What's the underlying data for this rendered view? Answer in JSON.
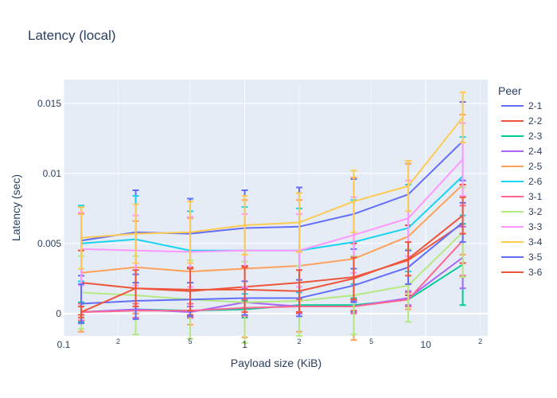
{
  "chart_data": {
    "type": "line",
    "title": "Latency (local)",
    "xlabel": "Payload size (KiB)",
    "ylabel": "Latency (sec)",
    "x_scale": "log",
    "xlim": [
      0.1,
      22
    ],
    "ylim": [
      -0.0016,
      0.0167
    ],
    "x_ticks": [
      {
        "v": 0.1,
        "label": "0.1"
      },
      {
        "v": 1,
        "label": "1"
      },
      {
        "v": 10,
        "label": "10"
      }
    ],
    "x_minor_ticks": [
      {
        "v": 0.2,
        "label": "2"
      },
      {
        "v": 0.5,
        "label": "5"
      },
      {
        "v": 2,
        "label": "2"
      },
      {
        "v": 5,
        "label": "5"
      },
      {
        "v": 20,
        "label": "2"
      }
    ],
    "y_ticks": [
      {
        "v": 0,
        "label": "0"
      },
      {
        "v": 0.005,
        "label": "0.005"
      },
      {
        "v": 0.01,
        "label": "0.01"
      },
      {
        "v": 0.015,
        "label": "0.015"
      }
    ],
    "grid": true,
    "legend_title": "Peer",
    "legend_position": "right",
    "x": [
      0.125,
      0.25,
      0.5,
      1,
      2,
      4,
      8,
      16
    ],
    "series": [
      {
        "name": "2-1",
        "color": "#636efa",
        "values": [
          0.0052,
          0.0058,
          0.0057,
          0.0061,
          0.0062,
          0.0071,
          0.0085,
          0.0123
        ],
        "errors": [
          0.0025,
          0.003,
          0.0025,
          0.0027,
          0.0028,
          0.0025,
          0.0022,
          0.0028
        ]
      },
      {
        "name": "2-2",
        "color": "#EF553B",
        "values": [
          0.0022,
          0.0018,
          0.0016,
          0.0019,
          0.0022,
          0.0026,
          0.0038,
          0.0064
        ],
        "errors": [
          0.0023,
          0.0018,
          0.0017,
          0.0015,
          0.0022,
          0.0024,
          0.0025,
          0.0028
        ]
      },
      {
        "name": "2-3",
        "color": "#00cc96",
        "values": [
          0.0001,
          0.0003,
          0.0002,
          0.0003,
          0.0006,
          0.0006,
          0.001,
          0.0035
        ],
        "errors": [
          0.0007,
          0.0006,
          0.0005,
          0.0006,
          0.0005,
          0.0005,
          0.0005,
          0.0029
        ]
      },
      {
        "name": "2-4",
        "color": "#ab63fa",
        "values": [
          0.0001,
          0.0003,
          0.0001,
          0.0008,
          0.0005,
          0.0005,
          0.0011,
          0.004
        ],
        "errors": [
          0.0006,
          0.0006,
          0.0004,
          0.001,
          0.0004,
          0.0004,
          0.0005,
          0.0022
        ]
      },
      {
        "name": "2-5",
        "color": "#FFA15A",
        "values": [
          0.0029,
          0.0033,
          0.003,
          0.0032,
          0.0034,
          0.0039,
          0.0055,
          0.0092
        ],
        "errors": [
          0.0042,
          0.0033,
          0.0038,
          0.0049,
          0.0047,
          0.0058,
          0.0052,
          0.005
        ]
      },
      {
        "name": "2-6",
        "color": "#19d3f3",
        "values": [
          0.005,
          0.0053,
          0.0045,
          0.0045,
          0.0045,
          0.0051,
          0.0061,
          0.0098
        ],
        "errors": [
          0.0027,
          0.0031,
          0.0028,
          0.0031,
          0.003,
          0.003,
          0.0031,
          0.0028
        ]
      },
      {
        "name": "3-1",
        "color": "#FF6692",
        "values": [
          0.0001,
          0.0002,
          0.0002,
          0.0004,
          0.0005,
          0.0005,
          0.001,
          0.0052
        ],
        "errors": [
          0.0006,
          0.0005,
          0.0005,
          0.0006,
          0.0005,
          0.0005,
          0.0005,
          0.0025
        ]
      },
      {
        "name": "3-2",
        "color": "#B6E880",
        "values": [
          0.0015,
          0.0013,
          0.001,
          0.0008,
          0.0009,
          0.0013,
          0.002,
          0.0058
        ],
        "errors": [
          0.0026,
          0.0028,
          0.0028,
          0.0029,
          0.0025,
          0.0028,
          0.0026,
          0.0032
        ]
      },
      {
        "name": "3-3",
        "color": "#FF97FF",
        "values": [
          0.0046,
          0.0045,
          0.0044,
          0.0045,
          0.0045,
          0.0056,
          0.0068,
          0.011
        ],
        "errors": [
          0.0026,
          0.0025,
          0.0025,
          0.0026,
          0.0026,
          0.0027,
          0.0027,
          0.0026
        ]
      },
      {
        "name": "3-4",
        "color": "#FECB52",
        "values": [
          0.0054,
          0.0057,
          0.0058,
          0.0063,
          0.0065,
          0.008,
          0.0091,
          0.014
        ],
        "errors": [
          0.0022,
          0.0021,
          0.0022,
          0.0021,
          0.0021,
          0.0022,
          0.0018,
          0.0018
        ]
      },
      {
        "name": "3-5",
        "color": "#636efa",
        "values": [
          0.0007,
          0.0009,
          0.001,
          0.0011,
          0.0011,
          0.002,
          0.0033,
          0.0065
        ],
        "errors": [
          0.0014,
          0.0013,
          0.0012,
          0.0012,
          0.0013,
          0.0012,
          0.0012,
          0.0014
        ]
      },
      {
        "name": "3-6",
        "color": "#EF553B",
        "values": [
          0.0001,
          0.0018,
          0.0017,
          0.0017,
          0.0016,
          0.0025,
          0.0039,
          0.007
        ],
        "errors": [
          0.0004,
          0.0013,
          0.0015,
          0.0016,
          0.0015,
          0.0015,
          0.0012,
          0.0013
        ]
      }
    ]
  }
}
